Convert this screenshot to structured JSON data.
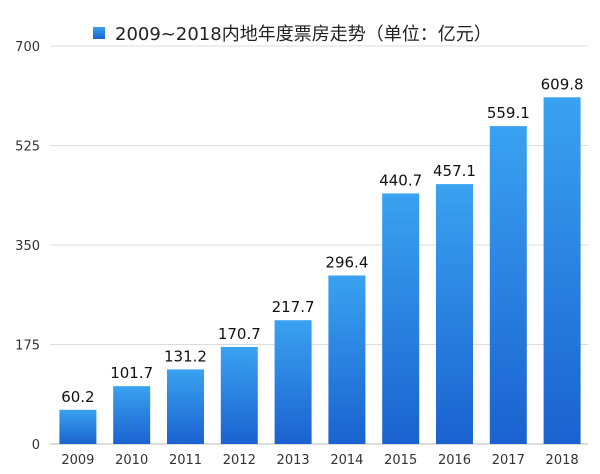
{
  "chart_data": {
    "type": "bar",
    "legend": "2009~2018内地年度票房走势（单位：亿元）",
    "legend_position": "top-center",
    "categories": [
      "2009",
      "2010",
      "2011",
      "2012",
      "2013",
      "2014",
      "2015",
      "2016",
      "2017",
      "2018"
    ],
    "values": [
      60.2,
      101.7,
      131.2,
      170.7,
      217.7,
      296.4,
      440.7,
      457.1,
      559.1,
      609.8
    ],
    "value_labels": [
      "60.2",
      "101.7",
      "131.2",
      "170.7",
      "217.7",
      "296.4",
      "440.7",
      "457.1",
      "559.1",
      "609.8"
    ],
    "y_ticks": [
      "0",
      "175",
      "350",
      "525",
      "700"
    ],
    "y_tick_values": [
      0,
      175,
      350,
      525,
      700
    ],
    "ylim": [
      0,
      700
    ],
    "grid": true,
    "colors": {
      "bar_top": "#3aa2f0",
      "bar_bottom": "#1a62d0",
      "grid": "#dcdcdc",
      "axis": "#bbbbbb"
    }
  }
}
